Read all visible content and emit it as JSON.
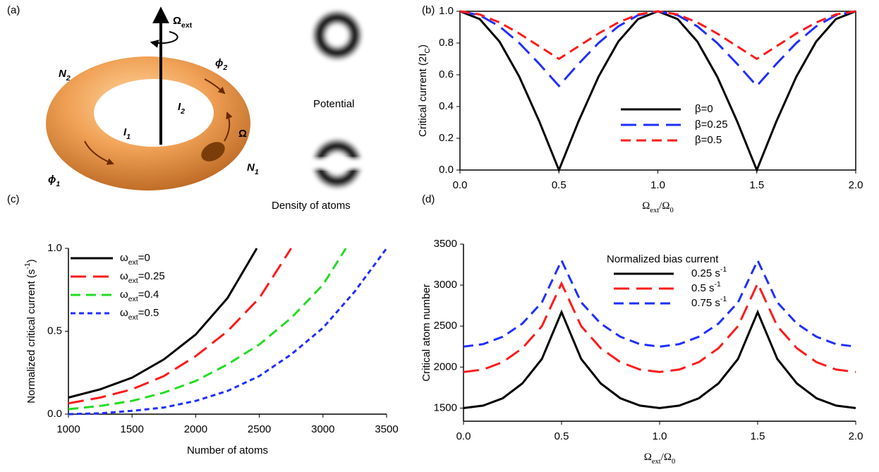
{
  "diagram": {
    "labels": [
      [
        {
          "t": "(a)"
        }
      ],
      [
        {
          "t": "Ω"
        },
        {
          "t": "ext",
          "sub": true
        }
      ],
      [
        {
          "t": "N"
        },
        {
          "t": "2",
          "sub": true
        }
      ],
      [
        {
          "t": "ϕ"
        },
        {
          "t": "2",
          "sub": true
        }
      ],
      [
        {
          "t": "I"
        },
        {
          "t": "2",
          "sub": true
        }
      ],
      [
        {
          "t": "I"
        },
        {
          "t": "1",
          "sub": true
        }
      ],
      [
        {
          "t": "Ω"
        }
      ],
      [
        {
          "t": "ϕ"
        },
        {
          "t": "1",
          "sub": true
        }
      ],
      [
        {
          "t": "N"
        },
        {
          "t": "1",
          "sub": true
        }
      ],
      [
        {
          "t": "Potential"
        }
      ],
      [
        {
          "t": "Density of atoms"
        }
      ]
    ]
  },
  "chart_data": [
    {
      "type": "line",
      "panel": "(b)",
      "frame": "box",
      "xlabel": [
        {
          "t": "Ω"
        },
        {
          "t": "ext",
          "sub": true
        },
        {
          "t": "/Ω"
        },
        {
          "t": "0",
          "sub": true
        }
      ],
      "ylabel": [
        {
          "t": "Critical current (2I"
        },
        {
          "t": "C",
          "sub": true
        },
        {
          "t": ")"
        }
      ],
      "x": [
        0,
        0.1,
        0.2,
        0.3,
        0.4,
        0.5,
        0.6,
        0.7,
        0.8,
        0.9,
        1,
        1.1,
        1.2,
        1.3,
        1.4,
        1.5,
        1.6,
        1.7,
        1.8,
        1.9,
        2
      ],
      "xlim": [
        0,
        2
      ],
      "xticks": [
        {
          "value": 0,
          "label": "0.0"
        },
        0.5,
        {
          "value": 1,
          "label": "1.0"
        },
        1.5,
        {
          "value": 2,
          "label": "2.0"
        }
      ],
      "ylim": [
        0,
        1
      ],
      "yticks": [
        {
          "value": 0,
          "label": "0.0"
        },
        0.2,
        0.4,
        0.6,
        0.8,
        {
          "value": 1,
          "label": "1.0"
        }
      ],
      "series": [
        {
          "name": [
            {
              "t": "β=0"
            }
          ],
          "color": "#000000",
          "dash": "solid",
          "values": [
            1,
            0.951,
            0.809,
            0.588,
            0.309,
            0,
            0.309,
            0.588,
            0.809,
            0.951,
            1,
            0.951,
            0.809,
            0.588,
            0.309,
            0,
            0.309,
            0.588,
            0.809,
            0.951,
            1
          ]
        },
        {
          "name": [
            {
              "t": "β=0.25"
            }
          ],
          "color": "#1f2fff",
          "dash": "long",
          "values": [
            1,
            0.975,
            0.905,
            0.8,
            0.67,
            0.53,
            0.67,
            0.8,
            0.905,
            0.975,
            1,
            0.975,
            0.905,
            0.8,
            0.67,
            0.53,
            0.67,
            0.8,
            0.905,
            0.975,
            1
          ]
        },
        {
          "name": [
            {
              "t": "β=0.5"
            }
          ],
          "color": "#ff1a1a",
          "dash": "medium",
          "values": [
            1,
            0.98,
            0.93,
            0.86,
            0.78,
            0.7,
            0.78,
            0.86,
            0.93,
            0.98,
            1,
            0.98,
            0.93,
            0.86,
            0.78,
            0.7,
            0.78,
            0.86,
            0.93,
            0.98,
            1
          ]
        }
      ]
    },
    {
      "type": "line",
      "panel": "(c)",
      "frame": "axes",
      "xlabel": [
        {
          "t": "Number of atoms"
        }
      ],
      "ylabel": [
        {
          "t": "Normalized critical current (s"
        },
        {
          "t": "-1",
          "sup": true
        },
        {
          "t": ")"
        }
      ],
      "xlim": [
        1000,
        3500
      ],
      "xticks": [
        1000,
        1500,
        2000,
        2500,
        3000,
        3500
      ],
      "ylim": [
        0,
        1
      ],
      "yticks": [
        {
          "value": 0,
          "label": "0.0"
        },
        0.5,
        {
          "value": 1,
          "label": "1.0"
        }
      ],
      "series": [
        {
          "name": [
            {
              "t": "ω"
            },
            {
              "t": "ext",
              "sub": true
            },
            {
              "t": "=0"
            }
          ],
          "color": "#000000",
          "dash": "solid",
          "x": [
            1000,
            1250,
            1500,
            1750,
            2000,
            2250,
            2480
          ],
          "values": [
            0.1,
            0.15,
            0.22,
            0.33,
            0.48,
            0.7,
            1
          ]
        },
        {
          "name": [
            {
              "t": "ω"
            },
            {
              "t": "ext",
              "sub": true
            },
            {
              "t": "=0.25"
            }
          ],
          "color": "#ff1a1a",
          "dash": "long",
          "x": [
            1000,
            1250,
            1500,
            1750,
            2000,
            2250,
            2500,
            2750
          ],
          "values": [
            0.065,
            0.1,
            0.15,
            0.23,
            0.35,
            0.5,
            0.7,
            1
          ]
        },
        {
          "name": [
            {
              "t": "ω"
            },
            {
              "t": "ext",
              "sub": true
            },
            {
              "t": "=0.4"
            }
          ],
          "color": "#22dd22",
          "dash": "medium",
          "x": [
            1000,
            1250,
            1500,
            1750,
            2000,
            2250,
            2500,
            2750,
            3000,
            3180
          ],
          "values": [
            0.03,
            0.05,
            0.08,
            0.13,
            0.2,
            0.3,
            0.42,
            0.58,
            0.78,
            1
          ]
        },
        {
          "name": [
            {
              "t": "ω"
            },
            {
              "t": "ext",
              "sub": true
            },
            {
              "t": "=0.5"
            }
          ],
          "color": "#1f2fff",
          "dash": "short",
          "x": [
            1000,
            1250,
            1500,
            1750,
            2000,
            2250,
            2500,
            2750,
            3000,
            3250,
            3500
          ],
          "values": [
            0,
            0.005,
            0.02,
            0.04,
            0.08,
            0.14,
            0.23,
            0.36,
            0.52,
            0.74,
            1
          ]
        }
      ]
    },
    {
      "type": "line",
      "panel": "(d)",
      "frame": "axes",
      "xlabel": [
        {
          "t": "Ω"
        },
        {
          "t": "ext",
          "sub": true
        },
        {
          "t": "/Ω"
        },
        {
          "t": "0",
          "sub": true
        }
      ],
      "ylabel": [
        {
          "t": "Critical atom number"
        }
      ],
      "legend_title": "Normalized bias current",
      "x": [
        0,
        0.1,
        0.2,
        0.3,
        0.4,
        0.5,
        0.6,
        0.7,
        0.8,
        0.9,
        1,
        1.1,
        1.2,
        1.3,
        1.4,
        1.5,
        1.6,
        1.7,
        1.8,
        1.9,
        2
      ],
      "xlim": [
        0,
        2
      ],
      "xticks": [
        {
          "value": 0,
          "label": "0.0"
        },
        0.5,
        {
          "value": 1,
          "label": "1.0"
        },
        1.5,
        {
          "value": 2,
          "label": "2.0"
        }
      ],
      "ylim": [
        1340,
        3500
      ],
      "yticks": [
        1500,
        2000,
        2500,
        3000,
        3500
      ],
      "series": [
        {
          "name": [
            {
              "t": "0.25 s"
            },
            {
              "t": "-1",
              "sup": true
            }
          ],
          "color": "#000000",
          "dash": "solid",
          "values": [
            1500,
            1530,
            1620,
            1800,
            2100,
            2670,
            2100,
            1800,
            1620,
            1530,
            1500,
            1530,
            1620,
            1800,
            2100,
            2670,
            2100,
            1800,
            1620,
            1530,
            1500
          ]
        },
        {
          "name": [
            {
              "t": "0.5 s"
            },
            {
              "t": "-1",
              "sup": true
            }
          ],
          "color": "#ff1a1a",
          "dash": "long",
          "values": [
            1940,
            1970,
            2060,
            2230,
            2500,
            3020,
            2500,
            2230,
            2060,
            1970,
            1940,
            1970,
            2060,
            2230,
            2500,
            3020,
            2500,
            2230,
            2060,
            1970,
            1940
          ]
        },
        {
          "name": [
            {
              "t": "0.75 s"
            },
            {
              "t": "-1",
              "sup": true
            }
          ],
          "color": "#1f2fff",
          "dash": "medium",
          "values": [
            2250,
            2280,
            2370,
            2530,
            2790,
            3300,
            2790,
            2530,
            2370,
            2280,
            2250,
            2280,
            2370,
            2530,
            2790,
            3300,
            2790,
            2530,
            2370,
            2280,
            2250
          ]
        }
      ]
    }
  ]
}
